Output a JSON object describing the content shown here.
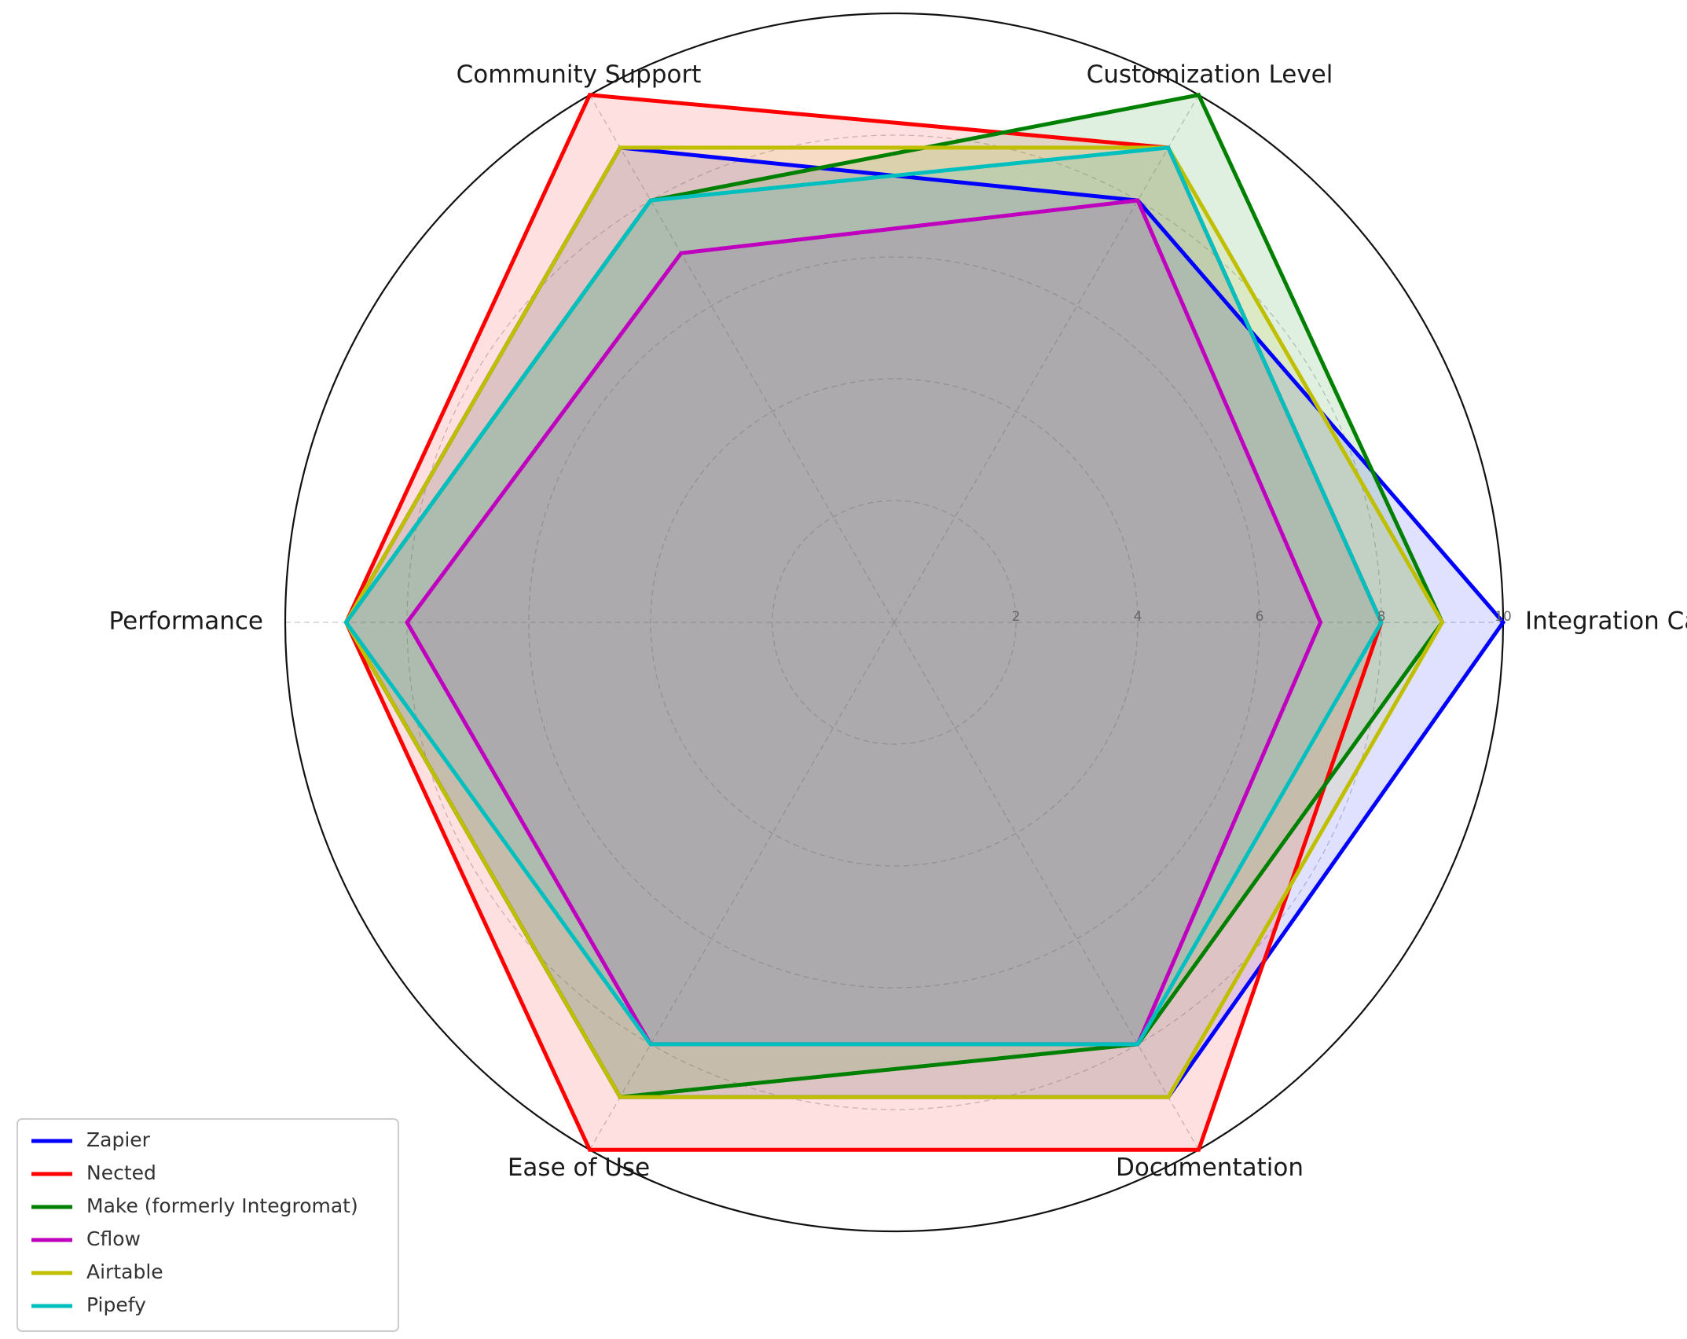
{
  "chart_data": {
    "type": "radar",
    "title": "",
    "axes": [
      "Integration Capabilities",
      "Customization Level",
      "Community Support",
      "Performance",
      "Ease of Use",
      "Documentation"
    ],
    "rlim": [
      0,
      10
    ],
    "rticks": [
      2,
      4,
      6,
      8,
      10
    ],
    "rtick_labels": [
      "2",
      "4",
      "6",
      "8",
      "10"
    ],
    "grid": true,
    "legend_position": "lower-left",
    "series": [
      {
        "name": "Zapier",
        "values": [
          10,
          8,
          9,
          9,
          9,
          9
        ],
        "color": "#0000ff"
      },
      {
        "name": "Nected",
        "values": [
          8,
          9,
          10,
          9,
          10,
          10
        ],
        "color": "#ff0000"
      },
      {
        "name": "Make (formerly Integromat)",
        "values": [
          9,
          10,
          8,
          9,
          9,
          8
        ],
        "color": "#008000"
      },
      {
        "name": "Cflow",
        "values": [
          7,
          8,
          7,
          8,
          8,
          8
        ],
        "color": "#bf00bf"
      },
      {
        "name": "Airtable",
        "values": [
          9,
          9,
          9,
          9,
          9,
          9
        ],
        "color": "#bfbf00"
      },
      {
        "name": "Pipefy",
        "values": [
          8,
          9,
          8,
          9,
          8,
          8
        ],
        "color": "#00bfbf"
      }
    ]
  }
}
